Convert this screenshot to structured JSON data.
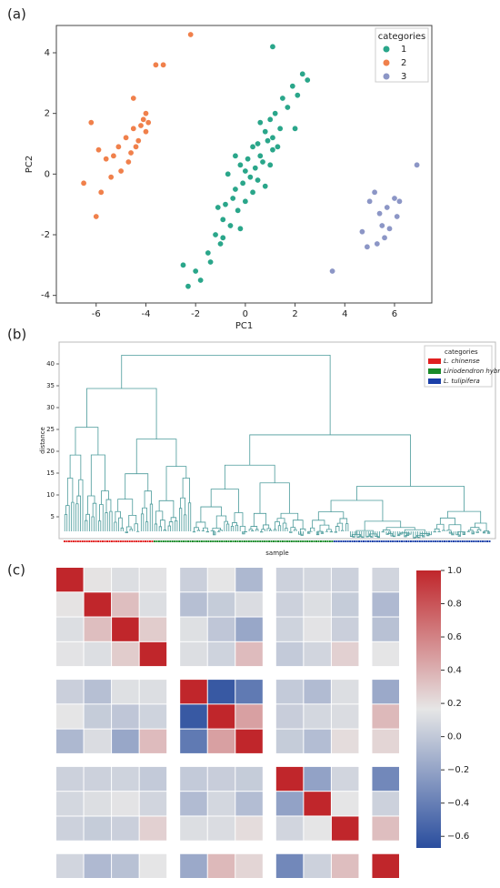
{
  "chart_data": [
    {
      "type": "scatter",
      "label": "(a)",
      "xlabel": "PC1",
      "ylabel": "PC2",
      "xlim": [
        -7.6,
        7.5
      ],
      "ylim": [
        -4.25,
        4.9
      ],
      "xticks": [
        -6,
        -4,
        -2,
        0,
        2,
        4,
        6
      ],
      "yticks": [
        -4,
        -2,
        0,
        2,
        4
      ],
      "legend_title": "categories",
      "legend": "upper right",
      "series": [
        {
          "name": "1",
          "color": "#2aa68a",
          "x": [
            -2.3,
            -2.0,
            -1.8,
            -1.5,
            -1.4,
            -1.2,
            -1.0,
            -0.9,
            -0.8,
            -0.6,
            -0.5,
            -0.4,
            -0.3,
            -0.2,
            -0.1,
            0,
            0.1,
            0.2,
            0.3,
            0.4,
            0.5,
            0.6,
            0.7,
            0.8,
            0.9,
            1.0,
            1.1,
            1.2,
            1.4,
            1.5,
            1.7,
            1.9,
            2.1,
            2.3,
            2.5,
            -0.7,
            0.3,
            -0.2,
            0.5,
            1.0,
            -1.1,
            0.0,
            0.8,
            -0.4,
            1.3,
            -0.9,
            0.6,
            1.1,
            2.0,
            -2.5,
            1.1
          ],
          "y": [
            -3.7,
            -3.2,
            -3.5,
            -2.6,
            -2.9,
            -2.0,
            -2.3,
            -1.5,
            -1.0,
            -1.7,
            -0.8,
            -0.5,
            -1.2,
            0.3,
            -0.3,
            0.1,
            0.5,
            -0.1,
            0.9,
            0.2,
            1.0,
            0.6,
            0.4,
            1.4,
            1.1,
            1.8,
            0.8,
            2.0,
            1.5,
            2.5,
            2.2,
            2.9,
            2.6,
            3.3,
            3.1,
            0.0,
            -0.6,
            -1.8,
            -0.2,
            0.3,
            -1.1,
            -0.9,
            -0.4,
            0.6,
            0.9,
            -2.1,
            1.7,
            1.2,
            1.5,
            -3.0,
            4.2
          ]
        },
        {
          "name": "2",
          "color": "#f0804b",
          "x": [
            -6.5,
            -6.0,
            -5.8,
            -5.6,
            -5.4,
            -5.1,
            -5.0,
            -4.8,
            -4.6,
            -4.5,
            -4.4,
            -4.2,
            -4.1,
            -4.0,
            -4.0,
            -3.9,
            -4.3,
            -4.7,
            -5.3,
            -5.9,
            -6.2,
            -3.6,
            -3.3,
            -2.2,
            -4.5
          ],
          "y": [
            -0.3,
            -1.4,
            -0.6,
            0.5,
            -0.1,
            0.9,
            0.1,
            1.2,
            0.7,
            1.5,
            0.9,
            1.6,
            1.8,
            1.4,
            2.0,
            1.7,
            1.1,
            0.4,
            0.6,
            0.8,
            1.7,
            3.6,
            3.6,
            4.6,
            2.5
          ]
        },
        {
          "name": "3",
          "color": "#8c96c6",
          "x": [
            3.5,
            4.7,
            5.0,
            5.2,
            5.4,
            5.5,
            5.6,
            5.7,
            5.8,
            6.0,
            6.1,
            6.2,
            6.9,
            5.3,
            4.9
          ],
          "y": [
            -3.2,
            -1.9,
            -0.9,
            -0.6,
            -1.3,
            -1.7,
            -2.1,
            -1.1,
            -1.8,
            -0.8,
            -1.4,
            -0.9,
            0.3,
            -2.3,
            -2.4
          ]
        }
      ]
    },
    {
      "type": "dendrogram",
      "label": "(b)",
      "xlabel": "sample",
      "ylabel": "distance",
      "ylim": [
        0,
        45
      ],
      "yticks": [
        5,
        10,
        15,
        20,
        25,
        30,
        35,
        40
      ],
      "legend_title": "categories",
      "legend": "upper right",
      "series": [
        {
          "name": "L. chinense",
          "color": "#e02020"
        },
        {
          "name": "Liriodendron hybrid",
          "color": "#1a8a2a"
        },
        {
          "name": "L. tulipifera",
          "color": "#1b3fa8"
        }
      ]
    },
    {
      "type": "heatmap",
      "label": "(c)",
      "zlim": [
        -0.67,
        1.0
      ],
      "zticks": [
        {
          "value": -0.6,
          "label": "−0.6"
        },
        {
          "value": -0.4,
          "label": "−0.4"
        },
        {
          "value": -0.2,
          "label": "−0.2"
        },
        {
          "value": 0,
          "label": "0.0"
        },
        0.2,
        0.4,
        0.6,
        0.8,
        {
          "value": 1,
          "label": "1.0"
        }
      ],
      "values": [
        [
          1,
          0.18,
          0.12,
          0.15,
          0.04,
          0.16,
          -0.09,
          0.05,
          0.08,
          0.05,
          0.07
        ],
        [
          0.18,
          1,
          0.34,
          0.12,
          -0.05,
          0.02,
          0.11,
          0.05,
          0.12,
          0.02,
          -0.08
        ],
        [
          0.12,
          0.34,
          1,
          0.28,
          0.13,
          -0.01,
          -0.18,
          0.06,
          0.15,
          0.04,
          -0.04
        ],
        [
          0.15,
          0.12,
          0.28,
          1,
          0.12,
          0.06,
          0.35,
          0.01,
          0.07,
          0.26,
          0.16
        ],
        [
          0.04,
          -0.05,
          0.13,
          0.12,
          1,
          -0.61,
          -0.43,
          0.01,
          -0.07,
          0.12,
          -0.17
        ],
        [
          0.16,
          0.02,
          -0.01,
          0.06,
          -0.61,
          1,
          0.47,
          0.03,
          0.08,
          0.11,
          0.36
        ],
        [
          -0.09,
          0.11,
          -0.18,
          0.35,
          -0.43,
          0.47,
          1,
          0.02,
          -0.06,
          0.21,
          0.24
        ],
        [
          0.05,
          0.05,
          0.06,
          0.01,
          0.01,
          0.03,
          0.02,
          1,
          -0.21,
          0.07,
          -0.35
        ],
        [
          0.08,
          0.12,
          0.15,
          0.07,
          -0.07,
          0.08,
          -0.06,
          -0.21,
          1,
          0.16,
          0.05
        ],
        [
          0.05,
          0.02,
          0.04,
          0.26,
          0.12,
          0.11,
          0.21,
          0.07,
          0.16,
          1,
          0.34
        ],
        [
          0.07,
          -0.08,
          -0.04,
          0.16,
          -0.17,
          0.36,
          0.24,
          -0.35,
          0.05,
          0.34,
          1
        ]
      ]
    }
  ]
}
